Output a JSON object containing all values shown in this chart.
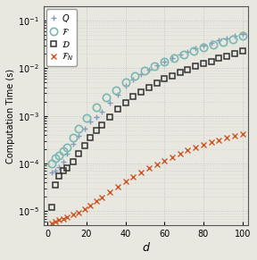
{
  "title": "",
  "xlabel": "$d$",
  "ylabel": "Computation Time (s)",
  "xlim": [
    -2,
    103
  ],
  "ylim": [
    5e-06,
    0.2
  ],
  "x_ticks": [
    0,
    20,
    40,
    60,
    80,
    100
  ],
  "Q_x": [
    2,
    4,
    6,
    8,
    10,
    13,
    16,
    19,
    22,
    25,
    28,
    32,
    36,
    40,
    44,
    48,
    52,
    56,
    60,
    64,
    68,
    72,
    76,
    80,
    84,
    88,
    92,
    96,
    100
  ],
  "Q_y": [
    6.5e-05,
    7e-05,
    8.5e-05,
    0.00011,
    0.00016,
    0.00026,
    0.00038,
    0.00055,
    0.00075,
    0.00095,
    0.0012,
    0.0019,
    0.0028,
    0.0042,
    0.0058,
    0.0075,
    0.0095,
    0.0115,
    0.014,
    0.0165,
    0.0195,
    0.0225,
    0.026,
    0.0295,
    0.0335,
    0.038,
    0.042,
    0.047,
    0.053
  ],
  "F_x": [
    2,
    4,
    6,
    8,
    10,
    13,
    16,
    20,
    25,
    30,
    35,
    40,
    45,
    50,
    55,
    60,
    65,
    70,
    75,
    80,
    85,
    90,
    95,
    100
  ],
  "F_y": [
    0.0001,
    0.00013,
    0.00015,
    0.00018,
    0.00022,
    0.00035,
    0.00055,
    0.0009,
    0.0015,
    0.0024,
    0.0035,
    0.005,
    0.0068,
    0.0088,
    0.011,
    0.0135,
    0.0165,
    0.0195,
    0.023,
    0.027,
    0.031,
    0.036,
    0.041,
    0.047
  ],
  "D_x": [
    2,
    4,
    6,
    8,
    10,
    13,
    16,
    19,
    22,
    25,
    28,
    32,
    36,
    40,
    44,
    48,
    52,
    56,
    60,
    64,
    68,
    72,
    76,
    80,
    84,
    88,
    92,
    96,
    100
  ],
  "D_y": [
    1.2e-05,
    3.5e-05,
    5.5e-05,
    7e-05,
    8e-05,
    0.00011,
    0.00016,
    0.00024,
    0.00035,
    0.0005,
    0.00065,
    0.00095,
    0.0014,
    0.0019,
    0.0025,
    0.0032,
    0.004,
    0.0049,
    0.006,
    0.007,
    0.0082,
    0.0095,
    0.011,
    0.0125,
    0.014,
    0.016,
    0.018,
    0.0205,
    0.0235
  ],
  "FN_x": [
    2,
    4,
    6,
    8,
    10,
    13,
    16,
    19,
    22,
    25,
    28,
    32,
    36,
    40,
    44,
    48,
    52,
    56,
    60,
    64,
    68,
    72,
    76,
    80,
    84,
    88,
    92,
    96,
    100
  ],
  "FN_y": [
    5.5e-06,
    6e-06,
    6.5e-06,
    7e-06,
    7.5e-06,
    8.5e-06,
    9.5e-06,
    1.1e-05,
    1.3e-05,
    1.6e-05,
    1.9e-05,
    2.5e-05,
    3.2e-05,
    4.2e-05,
    5.2e-05,
    6.5e-05,
    8e-05,
    9.5e-05,
    0.000115,
    0.000138,
    0.000162,
    0.00019,
    0.00022,
    0.00025,
    0.00028,
    0.00031,
    0.000345,
    0.00038,
    0.00042
  ],
  "Q_color": "#8899bb",
  "F_color": "#7ab8b0",
  "D_color": "#333333",
  "FN_color": "#cc5522",
  "bg_color": "#e8e8e0",
  "grid_color": "#bbbbbb"
}
